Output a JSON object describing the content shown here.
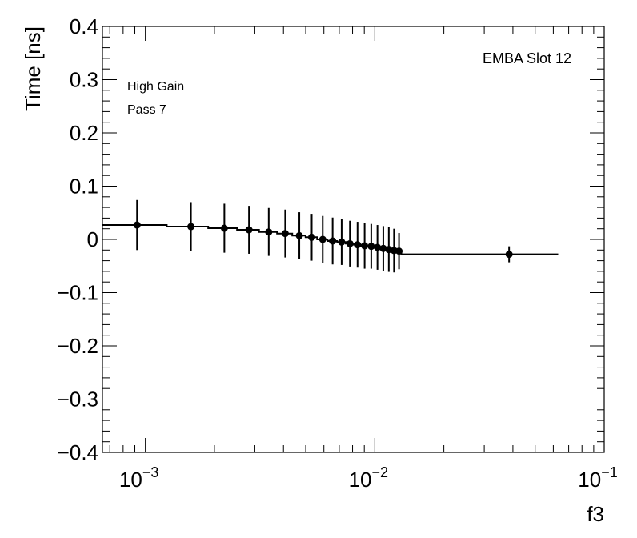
{
  "chart_data": {
    "type": "scatter",
    "title": "",
    "xlabel": "f3",
    "ylabel": "Time [ns]",
    "x_scale": "log",
    "xlim": [
      0.00065,
      0.1
    ],
    "ylim": [
      -0.4,
      0.4
    ],
    "grid": false,
    "legend": "none",
    "annotations": {
      "header": "EMBA Slot 12",
      "gain": "High Gain",
      "pass": "Pass 7"
    },
    "x_ticks": [
      {
        "value": 0.001,
        "base": "10",
        "exp": "−3"
      },
      {
        "value": 0.01,
        "base": "10",
        "exp": "−2"
      },
      {
        "value": 0.1,
        "base": "10",
        "exp": "−1"
      }
    ],
    "y_ticks": [
      {
        "value": 0.4,
        "label": "0.4"
      },
      {
        "value": 0.3,
        "label": "0.3"
      },
      {
        "value": 0.2,
        "label": "0.2"
      },
      {
        "value": 0.1,
        "label": "0.1"
      },
      {
        "value": 0,
        "label": "0"
      },
      {
        "value": -0.1,
        "label": "−0.1"
      },
      {
        "value": -0.2,
        "label": "−0.2"
      },
      {
        "value": -0.3,
        "label": "−0.3"
      },
      {
        "value": -0.4,
        "label": "−0.4"
      }
    ],
    "points": [
      {
        "x": 0.00092,
        "y": 0.027,
        "err": 0.047
      },
      {
        "x": 0.00158,
        "y": 0.024,
        "err": 0.046
      },
      {
        "x": 0.00221,
        "y": 0.021,
        "err": 0.046
      },
      {
        "x": 0.00283,
        "y": 0.018,
        "err": 0.045
      },
      {
        "x": 0.00345,
        "y": 0.014,
        "err": 0.045
      },
      {
        "x": 0.00407,
        "y": 0.011,
        "err": 0.045
      },
      {
        "x": 0.00469,
        "y": 0.007,
        "err": 0.044
      },
      {
        "x": 0.00531,
        "y": 0.004,
        "err": 0.044
      },
      {
        "x": 0.00593,
        "y": 0.0,
        "err": 0.044
      },
      {
        "x": 0.00655,
        "y": -0.003,
        "err": 0.044
      },
      {
        "x": 0.00717,
        "y": -0.005,
        "err": 0.043
      },
      {
        "x": 0.00779,
        "y": -0.008,
        "err": 0.043
      },
      {
        "x": 0.00841,
        "y": -0.01,
        "err": 0.043
      },
      {
        "x": 0.00903,
        "y": -0.012,
        "err": 0.043
      },
      {
        "x": 0.00965,
        "y": -0.013,
        "err": 0.042
      },
      {
        "x": 0.01027,
        "y": -0.015,
        "err": 0.042
      },
      {
        "x": 0.01089,
        "y": -0.017,
        "err": 0.042
      },
      {
        "x": 0.01151,
        "y": -0.019,
        "err": 0.042
      },
      {
        "x": 0.01213,
        "y": -0.021,
        "err": 0.041
      },
      {
        "x": 0.01275,
        "y": -0.022,
        "err": 0.034
      },
      {
        "x": 0.0385,
        "y": -0.028,
        "err": 0.015
      }
    ],
    "step_edges": [
      0.00065,
      0.00124,
      0.00188,
      0.00251,
      0.00313,
      0.00375,
      0.00437,
      0.00499,
      0.00561,
      0.00623,
      0.00685,
      0.00747,
      0.00809,
      0.00871,
      0.00933,
      0.00995,
      0.01057,
      0.01119,
      0.01181,
      0.01243,
      0.01305,
      0.063
    ],
    "step_values": [
      0.027,
      0.024,
      0.021,
      0.018,
      0.014,
      0.011,
      0.007,
      0.004,
      0.0,
      -0.003,
      -0.005,
      -0.008,
      -0.01,
      -0.012,
      -0.013,
      -0.015,
      -0.017,
      -0.019,
      -0.021,
      -0.022,
      -0.028
    ],
    "colors": {
      "marker": "#000000",
      "line": "#000000",
      "frame": "#000000"
    }
  }
}
